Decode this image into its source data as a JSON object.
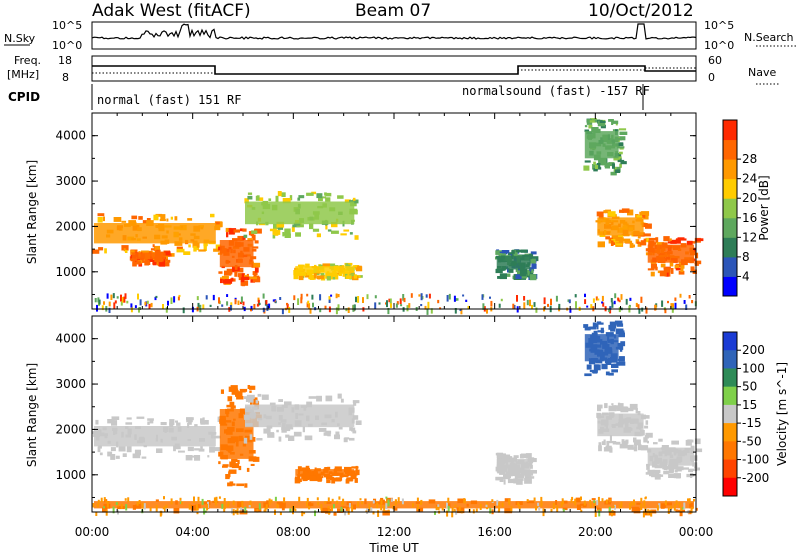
{
  "header": {
    "station": "Adak West (fitACF)",
    "beam": "Beam 07",
    "date": "10/Oct/2012"
  },
  "strips": {
    "nsky_label": "N.Sky",
    "nsearch_label": "N.Search",
    "nsky_ticks": [
      "10^5",
      "10^0"
    ],
    "nsearch_ticks": [
      "10^5",
      "10^0"
    ],
    "freq_label_1": "Freq.",
    "freq_label_2": "[MHz]",
    "freq_ticks": [
      "18",
      "8"
    ],
    "nave_label": "Nave",
    "nave_ticks": [
      "60",
      "0"
    ],
    "cpid_label": "CPID",
    "cpid_segments": [
      {
        "label": "normal (fast) 151 RF",
        "start": 0,
        "end": 17
      },
      {
        "label": "normalsound (fast) -157 RF",
        "start": 17,
        "end": 22
      }
    ]
  },
  "chart_data": [
    {
      "type": "heatmap",
      "name": "power",
      "ylabel": "Slant Range [km]",
      "xlim": [
        0,
        24
      ],
      "ylim": [
        180,
        4500
      ],
      "yticks": [
        1000,
        2000,
        3000,
        4000
      ],
      "colorbar_label": "Power [dB]",
      "colorbar_ticks": [
        4,
        8,
        12,
        16,
        20,
        24,
        28
      ],
      "colorbar_colors": [
        "#0000ff",
        "#2b55b8",
        "#2e7d57",
        "#5ea85e",
        "#8fc84a",
        "#ffcc00",
        "#ff9900",
        "#ff6600",
        "#ff2a00"
      ],
      "echo_regions": [
        {
          "t0": 0.0,
          "t1": 5.0,
          "r0": 1400,
          "r1": 2300,
          "level": 24
        },
        {
          "t0": 1.5,
          "t1": 3.0,
          "r0": 1200,
          "r1": 1500,
          "level": 28
        },
        {
          "t0": 5.0,
          "t1": 6.5,
          "r0": 800,
          "r1": 2000,
          "level": 28
        },
        {
          "t0": 6.0,
          "t1": 10.5,
          "r0": 1800,
          "r1": 2800,
          "level": 16
        },
        {
          "t0": 8.0,
          "t1": 10.5,
          "r0": 900,
          "r1": 1200,
          "level": 20
        },
        {
          "t0": 16.0,
          "t1": 17.5,
          "r0": 900,
          "r1": 1500,
          "level": 8
        },
        {
          "t0": 19.5,
          "t1": 21.0,
          "r0": 3200,
          "r1": 4400,
          "level": 12
        },
        {
          "t0": 20.0,
          "t1": 22.0,
          "r0": 1600,
          "r1": 2400,
          "level": 24
        },
        {
          "t0": 22.0,
          "t1": 24.0,
          "r0": 1000,
          "r1": 1800,
          "level": 28
        }
      ]
    },
    {
      "type": "heatmap",
      "name": "velocity",
      "ylabel": "Slant Range [km]",
      "xlabel": "Time UT",
      "xlim": [
        0,
        24
      ],
      "ylim": [
        180,
        4500
      ],
      "yticks": [
        1000,
        2000,
        3000,
        4000
      ],
      "xticks": [
        "00:00",
        "04:00",
        "08:00",
        "12:00",
        "16:00",
        "20:00",
        "00:00"
      ],
      "colorbar_label": "Velocity [m s^-1]",
      "colorbar_ticks": [
        "200",
        "100",
        "50",
        "15",
        "-15",
        "-50",
        "-100",
        "-200"
      ],
      "colorbar_colors": [
        "#1a3bd4",
        "#2f64b8",
        "#2e8b57",
        "#7fd04a",
        "#c8c8c8",
        "#ff9900",
        "#ff7700",
        "#ff4400",
        "#ff0000"
      ],
      "echo_regions": [
        {
          "t0": 0.0,
          "t1": 5.0,
          "r0": 1400,
          "r1": 2300,
          "level": 0
        },
        {
          "t0": 5.0,
          "t1": 6.5,
          "r0": 800,
          "r1": 3000,
          "level": -50
        },
        {
          "t0": 6.0,
          "t1": 10.5,
          "r0": 1800,
          "r1": 2800,
          "level": 0
        },
        {
          "t0": 8.0,
          "t1": 10.5,
          "r0": 900,
          "r1": 1200,
          "level": -50
        },
        {
          "t0": 16.0,
          "t1": 17.5,
          "r0": 900,
          "r1": 1500,
          "level": 0
        },
        {
          "t0": 19.5,
          "t1": 21.0,
          "r0": 3200,
          "r1": 4400,
          "level": 200
        },
        {
          "t0": 20.0,
          "t1": 22.0,
          "r0": 1600,
          "r1": 2600,
          "level": 0
        },
        {
          "t0": 22.0,
          "t1": 24.0,
          "r0": 1000,
          "r1": 1800,
          "level": 0
        },
        {
          "t0": 0.0,
          "t1": 24.0,
          "r0": 180,
          "r1": 500,
          "level": -50
        }
      ]
    }
  ]
}
